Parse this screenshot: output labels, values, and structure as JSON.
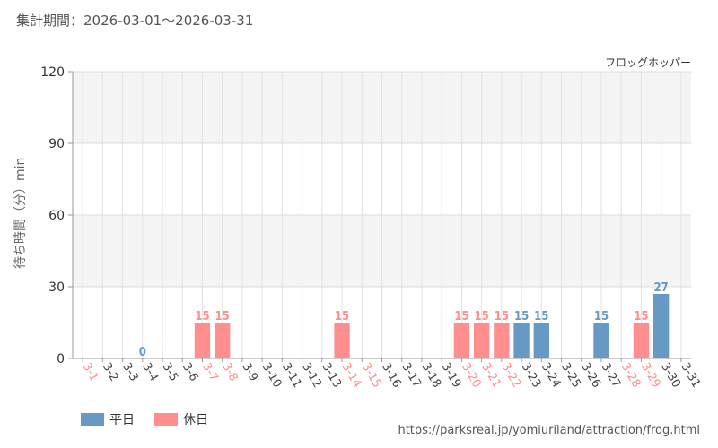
{
  "header": {
    "period_label": "集計期間：2026-03-01～2026-03-31",
    "attraction_name": "フロッグホッパー"
  },
  "legend": {
    "weekday": "平日",
    "holiday": "休日"
  },
  "source_url": "https://parksreal.jp/yomiuriland/attraction/frog.html",
  "colors": {
    "weekday": "#6699c4",
    "holiday": "#ff8f8f",
    "tick_weekday": "#444444",
    "tick_holiday": "#ff8f8f"
  },
  "chart_data": {
    "type": "bar",
    "ylabel": "待ち時間（分）min",
    "ylim": [
      0,
      120
    ],
    "yticks": [
      0,
      30,
      60,
      90,
      120
    ],
    "categories": [
      "3-1",
      "3-2",
      "3-3",
      "3-4",
      "3-5",
      "3-6",
      "3-7",
      "3-8",
      "3-9",
      "3-10",
      "3-11",
      "3-12",
      "3-13",
      "3-14",
      "3-15",
      "3-16",
      "3-17",
      "3-18",
      "3-19",
      "3-20",
      "3-21",
      "3-22",
      "3-23",
      "3-24",
      "3-25",
      "3-26",
      "3-27",
      "3-28",
      "3-29",
      "3-30",
      "3-31"
    ],
    "holiday": [
      true,
      false,
      false,
      false,
      false,
      false,
      true,
      true,
      false,
      false,
      false,
      false,
      false,
      true,
      true,
      false,
      false,
      false,
      false,
      true,
      true,
      true,
      false,
      false,
      false,
      false,
      false,
      true,
      true,
      false,
      false
    ],
    "values": [
      null,
      null,
      null,
      0,
      null,
      null,
      15,
      15,
      null,
      null,
      null,
      null,
      null,
      15,
      null,
      null,
      null,
      null,
      null,
      15,
      15,
      15,
      15,
      15,
      null,
      null,
      15,
      null,
      15,
      27,
      null
    ]
  }
}
